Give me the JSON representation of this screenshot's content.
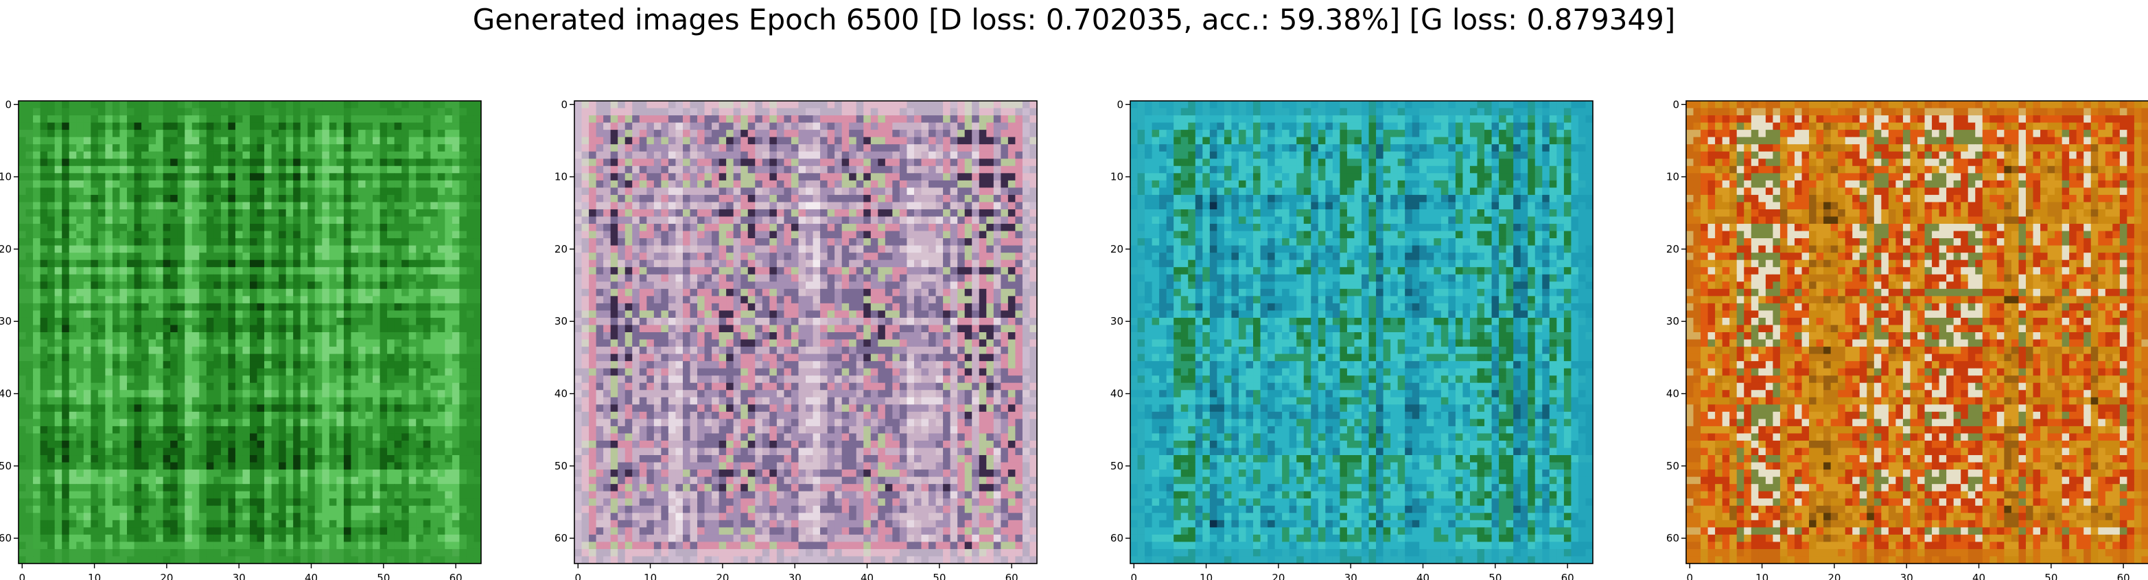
{
  "figure": {
    "title": "Generated images Epoch 6500 [D loss: 0.702035, acc.: 59.38%] [G loss: 0.879349]"
  },
  "chart_data": [
    {
      "type": "heatmap",
      "panel": "sample-1",
      "dominant_color": "#2a8f2a",
      "palette": [
        "#0a3a0a",
        "#125f12",
        "#1d7c1d",
        "#2a8f2a",
        "#3fa83f",
        "#5cc45c",
        "#7ad37a"
      ],
      "x_ticks": [
        "0",
        "10",
        "20",
        "30",
        "40",
        "50",
        "60"
      ],
      "y_ticks": [
        "0",
        "10",
        "20",
        "30",
        "40",
        "50",
        "60"
      ],
      "xlim": [
        -0.5,
        63.5
      ],
      "ylim": [
        63.5,
        -0.5
      ],
      "grid": false
    },
    {
      "type": "heatmap",
      "panel": "sample-2",
      "dominant_color": "#e6d9e3",
      "palette": [
        "#f3ecf0",
        "#e6d9e3",
        "#d7c2d0",
        "#c9b0c6",
        "#a58fb4",
        "#7a6a94",
        "#d98fa8",
        "#b7c79a",
        "#3b2a4a"
      ],
      "x_ticks": [
        "0",
        "10",
        "20",
        "30",
        "40",
        "50",
        "60"
      ],
      "y_ticks": [
        "0",
        "10",
        "20",
        "30",
        "40",
        "50",
        "60"
      ],
      "xlim": [
        -0.5,
        63.5
      ],
      "ylim": [
        63.5,
        -0.5
      ],
      "grid": false
    },
    {
      "type": "heatmap",
      "panel": "sample-3",
      "dominant_color": "#1e9db5",
      "palette": [
        "#0b2f4a",
        "#12607a",
        "#1a83a0",
        "#1e9db5",
        "#2cb4c4",
        "#3fc6c8",
        "#2a9a6a",
        "#1f7f3a"
      ],
      "x_ticks": [
        "0",
        "10",
        "20",
        "30",
        "40",
        "50",
        "60"
      ],
      "y_ticks": [
        "0",
        "10",
        "20",
        "30",
        "40",
        "50",
        "60"
      ],
      "xlim": [
        -0.5,
        63.5
      ],
      "ylim": [
        63.5,
        -0.5
      ],
      "grid": false
    },
    {
      "type": "heatmap",
      "panel": "sample-4",
      "dominant_color": "#cc8a12",
      "palette": [
        "#5a3a08",
        "#9a6010",
        "#c07a12",
        "#cc8a12",
        "#d89a20",
        "#e05a10",
        "#c93a0c",
        "#e6e0c8",
        "#7a8a40"
      ],
      "x_ticks": [
        "0",
        "10",
        "20",
        "30",
        "40",
        "50",
        "60"
      ],
      "y_ticks": [
        "0",
        "10",
        "20",
        "30",
        "40",
        "50",
        "60"
      ],
      "xlim": [
        -0.5,
        63.5
      ],
      "ylim": [
        63.5,
        -0.5
      ],
      "grid": false
    }
  ]
}
